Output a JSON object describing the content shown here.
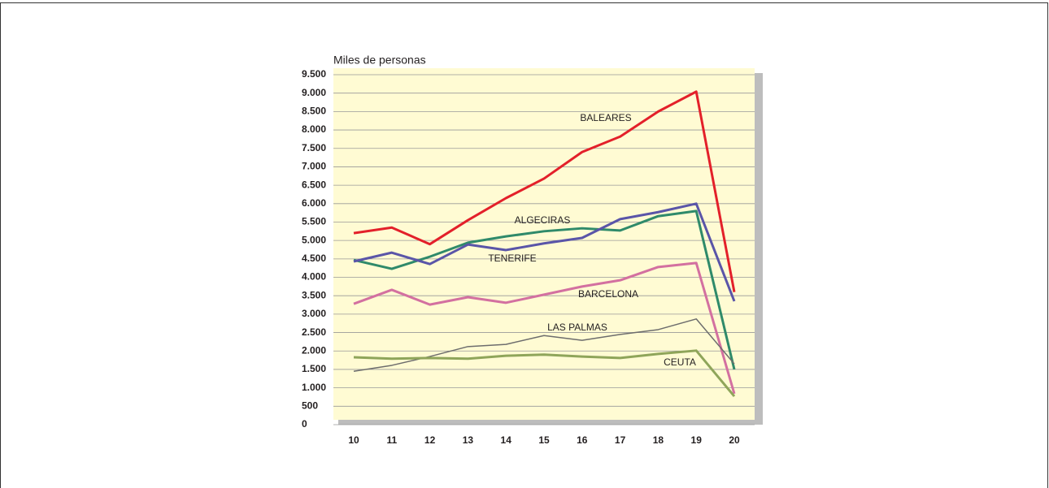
{
  "chart_data": {
    "type": "line",
    "y_label": "Miles de personas",
    "categories": [
      "10",
      "11",
      "12",
      "13",
      "14",
      "15",
      "16",
      "17",
      "18",
      "19",
      "20"
    ],
    "ylim": [
      0,
      9500
    ],
    "yticks": [
      0,
      500,
      {
        "value": 1000,
        "label": "1.000"
      },
      {
        "value": 1500,
        "label": "1.500"
      },
      {
        "value": 2000,
        "label": "2.000"
      },
      {
        "value": 2500,
        "label": "2.500"
      },
      {
        "value": 3000,
        "label": "3.000"
      },
      {
        "value": 3500,
        "label": "3.500"
      },
      {
        "value": 4000,
        "label": "4.000"
      },
      {
        "value": 4500,
        "label": "4.500"
      },
      {
        "value": 5000,
        "label": "5.000"
      },
      {
        "value": 5500,
        "label": "5.500"
      },
      {
        "value": 6000,
        "label": "6.000"
      },
      {
        "value": 6500,
        "label": "6.500"
      },
      {
        "value": 7000,
        "label": "7.000"
      },
      {
        "value": 7500,
        "label": "7.500"
      },
      {
        "value": 8000,
        "label": "8.000"
      },
      {
        "value": 8500,
        "label": "8.500"
      },
      {
        "value": 9000,
        "label": "9.000"
      },
      {
        "value": 9500,
        "label": "9.500"
      }
    ],
    "grid": true,
    "series": [
      {
        "name": "BALEARES",
        "color": "#e3202a",
        "values": [
          5200,
          5350,
          4900,
          5550,
          6150,
          6680,
          7400,
          7820,
          8500,
          9040,
          3600
        ]
      },
      {
        "name": "ALGECIRAS",
        "color": "#2f8a6a",
        "values": [
          4470,
          4230,
          4560,
          4940,
          5110,
          5250,
          5330,
          5270,
          5660,
          5800,
          1500
        ]
      },
      {
        "name": "TENERIFE",
        "color": "#5a55a8",
        "values": [
          4430,
          4670,
          4360,
          4890,
          4740,
          4920,
          5070,
          5580,
          5770,
          6000,
          3350
        ]
      },
      {
        "name": "BARCELONA",
        "color": "#d370a0",
        "values": [
          3280,
          3660,
          3260,
          3460,
          3310,
          3530,
          3750,
          3920,
          4280,
          4390,
          840
        ]
      },
      {
        "name": "LAS PALMAS",
        "color": "#6d6d6d",
        "values": [
          1450,
          1610,
          1850,
          2120,
          2180,
          2420,
          2290,
          2450,
          2580,
          2870,
          1650
        ]
      },
      {
        "name": "CEUTA",
        "color": "#8fa55a",
        "values": [
          1830,
          1790,
          1810,
          1790,
          1870,
          1900,
          1850,
          1810,
          1920,
          2010,
          770
        ]
      }
    ]
  }
}
